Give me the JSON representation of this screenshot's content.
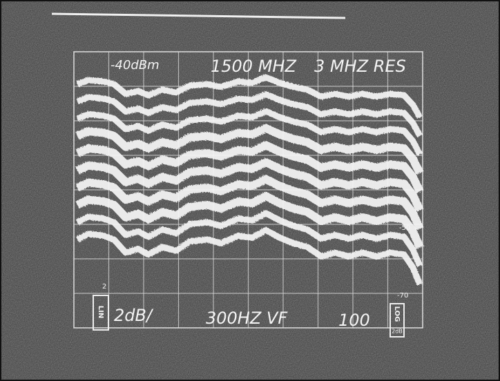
{
  "screen": {
    "reference_level": "-40dBm",
    "center_frequency": "1500 MHZ",
    "resolution": "3 MHZ RES",
    "scale": "2dB/",
    "video_filter": "300HZ VF",
    "span": "100",
    "left_mode": "LIN",
    "right_mode": "LOG",
    "right_mode_scale": "2dB",
    "left_marker": "2",
    "scale_labels": [
      "-50",
      "-70"
    ]
  }
}
